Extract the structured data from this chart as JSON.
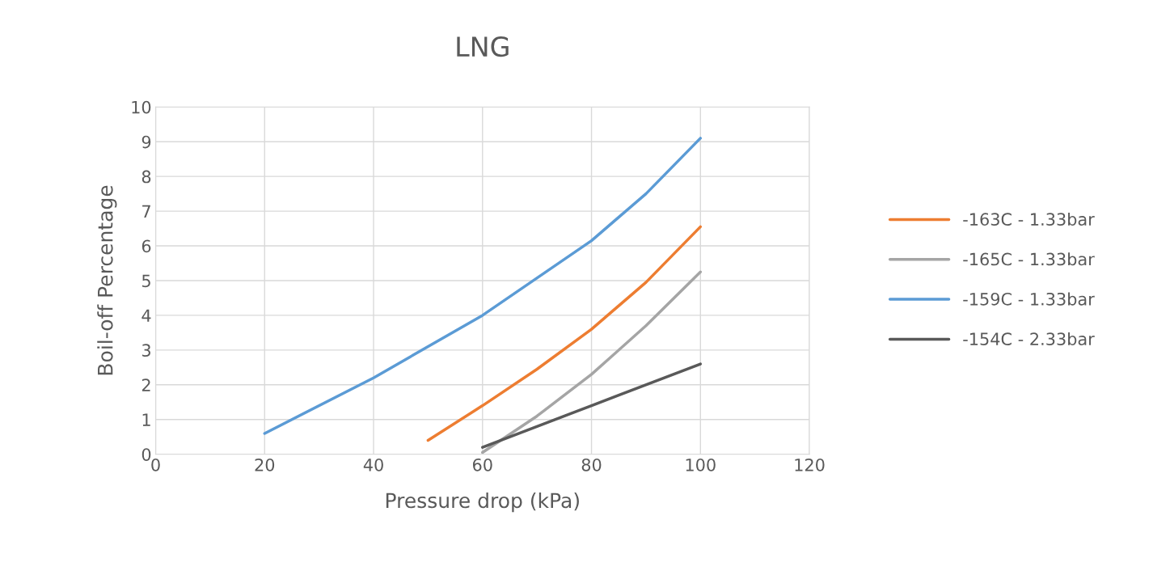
{
  "chart_data": {
    "type": "line",
    "title": "LNG",
    "xlabel": "Pressure drop (kPa)",
    "ylabel": "Boil-off Percentage",
    "series": [
      {
        "name": "-163C - 1.33bar",
        "color": "#ed7d31",
        "x": [
          50,
          60,
          70,
          80,
          90,
          100
        ],
        "values": [
          0.4,
          1.4,
          2.45,
          3.6,
          4.95,
          6.55
        ]
      },
      {
        "name": "-165C - 1.33bar",
        "color": "#a5a5a5",
        "x": [
          60,
          70,
          80,
          90,
          100
        ],
        "values": [
          0.05,
          1.1,
          2.3,
          3.7,
          5.25
        ]
      },
      {
        "name": "-159C - 1.33bar",
        "color": "#5b9bd5",
        "x": [
          20,
          40,
          60,
          80,
          90,
          100
        ],
        "values": [
          0.6,
          2.2,
          4.0,
          6.15,
          7.5,
          9.1
        ]
      },
      {
        "name": "-154C - 2.33bar",
        "color": "#595959",
        "x": [
          60,
          80,
          100
        ],
        "values": [
          0.2,
          1.4,
          2.6
        ]
      }
    ],
    "xlim": [
      0,
      120
    ],
    "xticks": [
      0,
      20,
      40,
      60,
      80,
      100,
      120
    ],
    "ylim": [
      0,
      10
    ],
    "yticks": [
      0,
      1,
      2,
      3,
      4,
      5,
      6,
      7,
      8,
      9,
      10
    ],
    "grid": true,
    "legend": "right",
    "marker": "none",
    "line_style": "solid"
  }
}
